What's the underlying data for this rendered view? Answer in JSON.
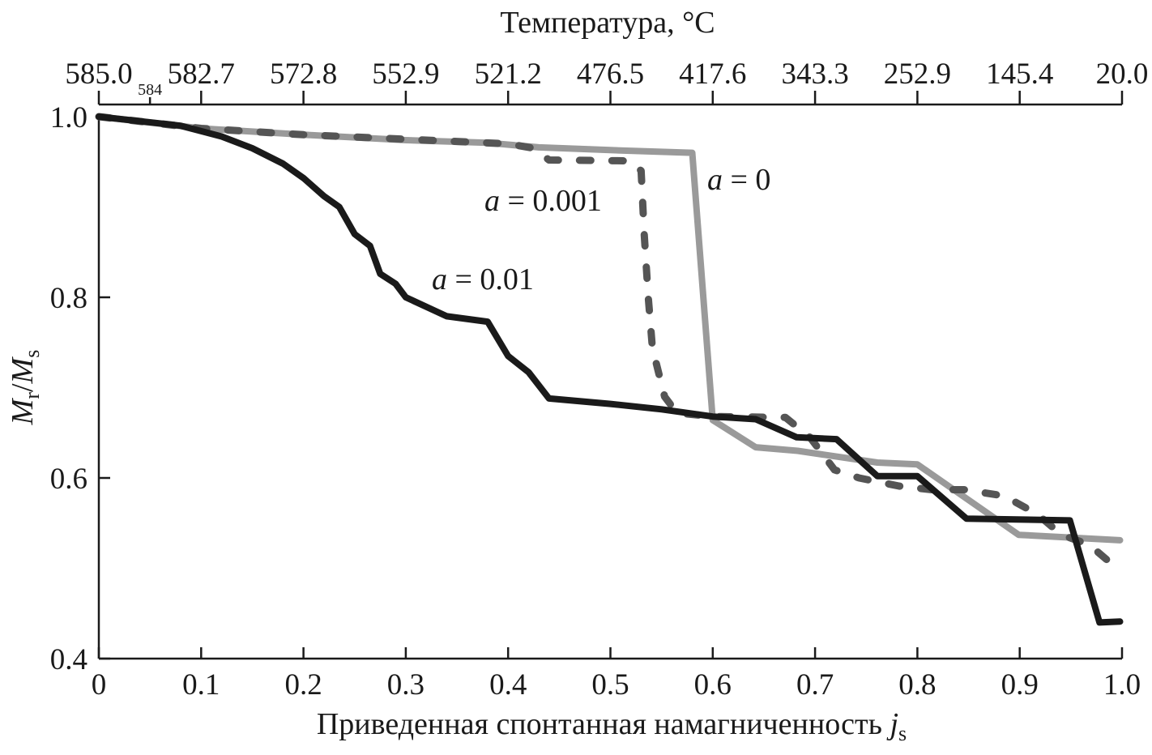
{
  "chart_data": {
    "type": "line",
    "title": "",
    "xlabel": "Приведенная спонтанная намагниченность",
    "xlabel_symbol": "j",
    "xlabel_sub": "s",
    "ylabel_main": "M",
    "ylabel_sub1": "r",
    "ylabel_sep": "/",
    "ylabel_sub2": "s",
    "top_axis_title": "Температура, °C",
    "xlim": [
      0,
      1.0
    ],
    "ylim": [
      0.4,
      1.0
    ],
    "x_ticks": [
      "0",
      "0.1",
      "0.2",
      "0.3",
      "0.4",
      "0.5",
      "0.6",
      "0.7",
      "0.8",
      "0.9",
      "1.0"
    ],
    "y_ticks": [
      "0.4",
      "0.6",
      "0.8",
      "1.0"
    ],
    "top_ticks": [
      "585.0",
      "582.7",
      "572.8",
      "552.9",
      "521.2",
      "476.5",
      "417.6",
      "343.3",
      "252.9",
      "145.4",
      "20.0"
    ],
    "top_minor_tick": {
      "x": 0.05,
      "label": "584"
    },
    "grid": false,
    "series": [
      {
        "name": "a = 0",
        "label_var": "a",
        "label_rest": " = 0",
        "color": "#9a9a9a",
        "style": "solid",
        "points": [
          [
            0,
            1.0
          ],
          [
            0.1,
            0.987
          ],
          [
            0.2,
            0.98
          ],
          [
            0.3,
            0.974
          ],
          [
            0.38,
            0.971
          ],
          [
            0.43,
            0.966
          ],
          [
            0.5,
            0.963
          ],
          [
            0.58,
            0.96
          ],
          [
            0.6,
            0.664
          ],
          [
            0.642,
            0.634
          ],
          [
            0.683,
            0.63
          ],
          [
            0.761,
            0.617
          ],
          [
            0.8,
            0.615
          ],
          [
            0.899,
            0.537
          ],
          [
            0.998,
            0.531
          ]
        ]
      },
      {
        "name": "a = 0.001",
        "label_var": "a",
        "label_rest": " = 0.001",
        "color": "#555555",
        "style": "dashed",
        "points": [
          [
            0,
            1.0
          ],
          [
            0.1,
            0.987
          ],
          [
            0.2,
            0.98
          ],
          [
            0.3,
            0.975
          ],
          [
            0.4,
            0.97
          ],
          [
            0.425,
            0.965
          ],
          [
            0.44,
            0.952
          ],
          [
            0.52,
            0.951
          ],
          [
            0.53,
            0.94
          ],
          [
            0.533,
            0.87
          ],
          [
            0.537,
            0.8
          ],
          [
            0.541,
            0.744
          ],
          [
            0.553,
            0.69
          ],
          [
            0.565,
            0.672
          ],
          [
            0.6,
            0.668
          ],
          [
            0.671,
            0.667
          ],
          [
            0.695,
            0.645
          ],
          [
            0.719,
            0.609
          ],
          [
            0.743,
            0.6
          ],
          [
            0.782,
            0.591
          ],
          [
            0.814,
            0.587
          ],
          [
            0.846,
            0.587
          ],
          [
            0.885,
            0.58
          ],
          [
            0.917,
            0.56
          ],
          [
            0.941,
            0.537
          ],
          [
            0.968,
            0.526
          ],
          [
            0.998,
            0.497
          ]
        ]
      },
      {
        "name": "a = 0.01",
        "label_var": "a",
        "label_rest": " = 0.01",
        "color": "#1a1a1a",
        "style": "solid",
        "points": [
          [
            0,
            1.0
          ],
          [
            0.08,
            0.99
          ],
          [
            0.12,
            0.978
          ],
          [
            0.15,
            0.965
          ],
          [
            0.18,
            0.948
          ],
          [
            0.2,
            0.932
          ],
          [
            0.22,
            0.912
          ],
          [
            0.235,
            0.9
          ],
          [
            0.25,
            0.87
          ],
          [
            0.265,
            0.857
          ],
          [
            0.275,
            0.826
          ],
          [
            0.29,
            0.815
          ],
          [
            0.3,
            0.8
          ],
          [
            0.34,
            0.779
          ],
          [
            0.38,
            0.773
          ],
          [
            0.4,
            0.735
          ],
          [
            0.42,
            0.717
          ],
          [
            0.44,
            0.688
          ],
          [
            0.5,
            0.682
          ],
          [
            0.55,
            0.676
          ],
          [
            0.6,
            0.668
          ],
          [
            0.642,
            0.665
          ],
          [
            0.682,
            0.645
          ],
          [
            0.721,
            0.643
          ],
          [
            0.761,
            0.602
          ],
          [
            0.8,
            0.602
          ],
          [
            0.848,
            0.555
          ],
          [
            0.949,
            0.553
          ],
          [
            0.978,
            0.44
          ],
          [
            0.998,
            0.441
          ]
        ]
      }
    ]
  }
}
